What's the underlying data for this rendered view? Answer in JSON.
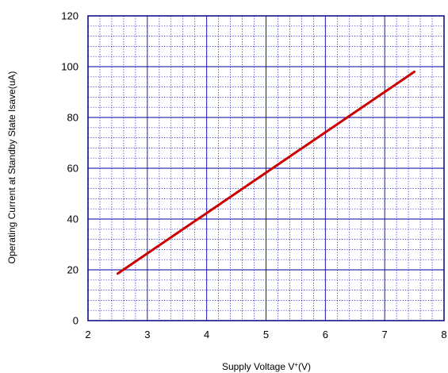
{
  "chart_data": {
    "type": "line",
    "xlabel_main": "Supply Voltage  V",
    "xlabel_sup": "+",
    "xlabel_tail": "(V)",
    "ylabel": "Operating Current at Standby State  Isave(uA)",
    "xlim": [
      2,
      8
    ],
    "ylim": [
      0,
      120
    ],
    "x_major_ticks": [
      2,
      3,
      4,
      5,
      6,
      7,
      8
    ],
    "y_major_ticks": [
      0,
      20,
      40,
      60,
      80,
      100,
      120
    ],
    "x_minor_step": 0.2,
    "y_minor_step": 4,
    "grid": true,
    "series": [
      {
        "x": [
          2.5,
          7.5
        ],
        "y": [
          18.5,
          98
        ]
      }
    ]
  },
  "colors": {
    "axis": "#000080",
    "major_grid": "#0000a0",
    "minor_grid": "#0000c0",
    "line": "#cc0000"
  }
}
